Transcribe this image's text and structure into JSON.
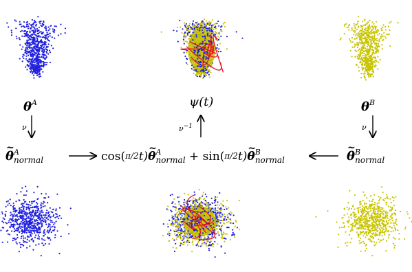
{
  "diagram": {
    "labels": {
      "theta_a": "θ",
      "theta_a_sup": "A",
      "theta_b": "θ",
      "theta_b_sup": "B",
      "psi": "ψ(t)",
      "nu_left": "ν",
      "nu_right": "ν",
      "nu_inv": "ν",
      "nu_inv_sup": "−1",
      "theta_a_norm": "θ",
      "theta_a_norm_sup": "A",
      "theta_a_norm_sub": "normal",
      "theta_b_norm": "θ",
      "theta_b_norm_sup": "B",
      "theta_b_norm_sub": "normal",
      "interp_cos": "cos(",
      "interp_pi_over_2": "π/2",
      "interp_t1": "t)",
      "interp_theta_a": "θ",
      "interp_a_sup": "A",
      "interp_a_sub": "normal",
      "interp_plus": " + sin(",
      "interp_t2": "t)",
      "interp_theta_b": "θ",
      "interp_b_sup": "B",
      "interp_b_sub": "normal"
    },
    "colors": {
      "blue": "#1f1fe0",
      "olive": "#c8c400",
      "red": "#e8102a",
      "arrow": "#000000"
    },
    "point_clouds": [
      {
        "name": "cloud-a-original",
        "color": "blue",
        "shape": "bowl"
      },
      {
        "name": "cloud-interp-original",
        "color": "mixed",
        "shape": "bowl",
        "has_paths": true
      },
      {
        "name": "cloud-b-original",
        "color": "olive",
        "shape": "bowl"
      },
      {
        "name": "cloud-a-normal",
        "color": "blue",
        "shape": "gaussian"
      },
      {
        "name": "cloud-interp-normal",
        "color": "mixed",
        "shape": "gaussian",
        "has_paths": true
      },
      {
        "name": "cloud-b-normal",
        "color": "olive",
        "shape": "gaussian"
      }
    ]
  }
}
